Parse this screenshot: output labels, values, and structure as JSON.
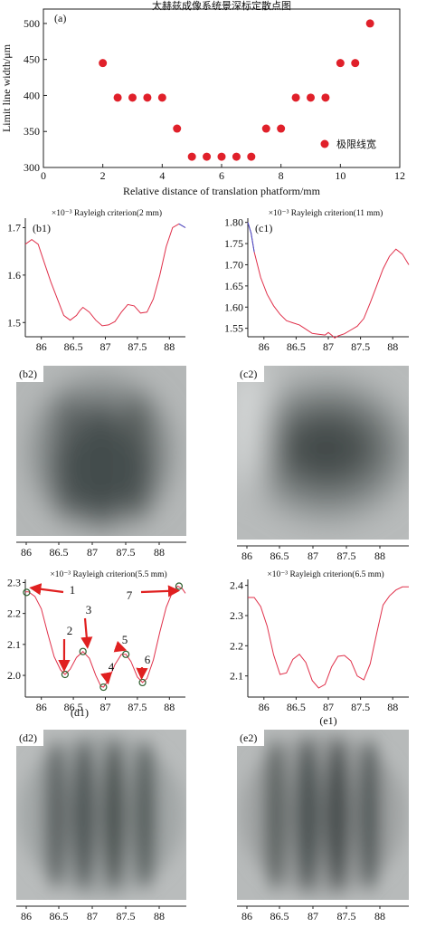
{
  "chart_data": [
    {
      "panel": "(a)",
      "type": "scatter",
      "title": "太赫兹成像系统景深标定散点图",
      "xlabel": "Relative distance of translation phatform/mm",
      "ylabel": "Limit line width/μm",
      "xlim": [
        0,
        12
      ],
      "ylim": [
        300,
        520
      ],
      "xticks": [
        "0",
        "2",
        "4",
        "6",
        "8",
        "10",
        "12"
      ],
      "yticks": [
        "300",
        "350",
        "400",
        "450",
        "500"
      ],
      "legend": "极限线宽",
      "legend_position": "bottom-right",
      "color": "#e0202a",
      "x": [
        2,
        2.5,
        3,
        3.5,
        4,
        4.5,
        5,
        5.5,
        6,
        6.5,
        7,
        7.5,
        8,
        8.5,
        9,
        9.5,
        10,
        10.5,
        11
      ],
      "y": [
        445,
        397,
        397,
        397,
        397,
        354,
        315,
        315,
        315,
        315,
        315,
        354,
        354,
        397,
        397,
        397,
        445,
        445,
        500
      ]
    },
    {
      "panel": "(b1)",
      "type": "line",
      "title": "×10⁻³ Rayleigh criterion(2 mm)",
      "xlim": [
        85.75,
        88.25
      ],
      "ylim": [
        1.47,
        1.72
      ],
      "xticks": [
        "86",
        "86.5",
        "87",
        "87.5",
        "88"
      ],
      "yticks": [
        "1.5",
        "1.6",
        "1.7"
      ],
      "x": [
        85.75,
        85.85,
        85.95,
        86.05,
        86.15,
        86.25,
        86.35,
        86.45,
        86.55,
        86.6,
        86.65,
        86.75,
        86.85,
        86.95,
        87.05,
        87.15,
        87.25,
        87.35,
        87.45,
        87.55,
        87.65,
        87.75,
        87.85,
        87.95,
        88.05,
        88.15,
        88.25
      ],
      "y": [
        1.665,
        1.675,
        1.665,
        1.625,
        1.585,
        1.55,
        1.515,
        1.505,
        1.515,
        1.525,
        1.532,
        1.522,
        1.505,
        1.493,
        1.495,
        1.502,
        1.522,
        1.538,
        1.535,
        1.52,
        1.522,
        1.55,
        1.6,
        1.66,
        1.7,
        1.708,
        1.7
      ]
    },
    {
      "panel": "(c1)",
      "type": "line",
      "title": "×10⁻³ Rayleigh criterion(11 mm)",
      "xlim": [
        85.75,
        88.25
      ],
      "ylim": [
        1.53,
        1.81
      ],
      "xticks": [
        "86",
        "86.5",
        "87",
        "87.5",
        "88"
      ],
      "yticks": [
        "1.55",
        "1.60",
        "1.65",
        "1.70",
        "1.75",
        "1.80"
      ],
      "x": [
        85.75,
        85.8,
        85.85,
        85.95,
        86.05,
        86.15,
        86.25,
        86.35,
        86.45,
        86.55,
        86.65,
        86.75,
        86.85,
        86.95,
        87.0,
        87.05,
        87.1,
        87.15,
        87.25,
        87.35,
        87.45,
        87.55,
        87.65,
        87.75,
        87.85,
        87.95,
        88.05,
        88.15,
        88.25
      ],
      "y": [
        1.8,
        1.775,
        1.73,
        1.67,
        1.63,
        1.603,
        1.583,
        1.568,
        1.563,
        1.558,
        1.548,
        1.538,
        1.536,
        1.534,
        1.54,
        1.534,
        1.527,
        1.532,
        1.537,
        1.546,
        1.555,
        1.573,
        1.61,
        1.65,
        1.69,
        1.72,
        1.737,
        1.725,
        1.7
      ]
    },
    {
      "panel": "(d1)",
      "type": "line",
      "title": "×10⁻³ Rayleigh criterion(5.5 mm)",
      "xlabel": "(d1)",
      "xlim": [
        85.75,
        88.25
      ],
      "ylim": [
        1.93,
        2.31
      ],
      "xticks": [
        "86",
        "86.5",
        "87",
        "87.5",
        "88"
      ],
      "yticks": [
        "2.0",
        "2.1",
        "2.2",
        "2.3"
      ],
      "x": [
        85.75,
        85.8,
        85.9,
        86.0,
        86.1,
        86.2,
        86.3,
        86.37,
        86.45,
        86.55,
        86.65,
        86.75,
        86.85,
        86.93,
        86.97,
        87.05,
        87.15,
        87.25,
        87.32,
        87.4,
        87.5,
        87.58,
        87.65,
        87.75,
        87.85,
        87.95,
        88.05,
        88.13,
        88.2,
        88.25
      ],
      "y": [
        2.27,
        2.27,
        2.255,
        2.215,
        2.135,
        2.06,
        2.018,
        2.003,
        2.02,
        2.058,
        2.077,
        2.055,
        2.0,
        1.965,
        1.962,
        1.985,
        2.035,
        2.068,
        2.068,
        2.045,
        1.995,
        1.977,
        1.99,
        2.05,
        2.14,
        2.22,
        2.27,
        2.288,
        2.28,
        2.265
      ],
      "markers": [
        {
          "label": "1",
          "x": 85.77,
          "y": 2.268
        },
        {
          "label": "2",
          "x": 86.37,
          "y": 2.003
        },
        {
          "label": "3",
          "x": 86.65,
          "y": 2.077
        },
        {
          "label": "4",
          "x": 86.97,
          "y": 1.962
        },
        {
          "label": "5",
          "x": 87.32,
          "y": 2.068
        },
        {
          "label": "6",
          "x": 87.58,
          "y": 1.977
        },
        {
          "label": "7",
          "x": 88.15,
          "y": 2.288
        }
      ]
    },
    {
      "panel": "(e1)",
      "type": "line",
      "title": "×10⁻³ Rayleigh criterion(6.5 mm)",
      "xlabel": "(e1)",
      "xlim": [
        85.75,
        88.25
      ],
      "ylim": [
        2.03,
        2.42
      ],
      "xticks": [
        "86",
        "86.5",
        "87",
        "87.5",
        "88"
      ],
      "yticks": [
        "2.1",
        "2.2",
        "2.3",
        "2.4"
      ],
      "x": [
        85.75,
        85.85,
        85.95,
        86.05,
        86.15,
        86.25,
        86.35,
        86.45,
        86.55,
        86.65,
        86.75,
        86.85,
        86.95,
        87.05,
        87.15,
        87.25,
        87.35,
        87.45,
        87.55,
        87.65,
        87.75,
        87.85,
        87.95,
        88.05,
        88.15,
        88.25
      ],
      "y": [
        2.36,
        2.36,
        2.33,
        2.265,
        2.17,
        2.105,
        2.11,
        2.155,
        2.172,
        2.145,
        2.085,
        2.06,
        2.072,
        2.13,
        2.165,
        2.168,
        2.15,
        2.1,
        2.087,
        2.14,
        2.24,
        2.335,
        2.365,
        2.385,
        2.395,
        2.395
      ]
    }
  ],
  "images": [
    {
      "panel": "(b2)",
      "xticks": [
        "86",
        "86.5",
        "87",
        "87.5",
        "88"
      ]
    },
    {
      "panel": "(c2)",
      "xticks": [
        "86",
        "86.5",
        "87",
        "87.5",
        "88"
      ]
    },
    {
      "panel": "(d2)",
      "xticks": [
        "86",
        "86.5",
        "87",
        "87.5",
        "88"
      ]
    },
    {
      "panel": "(e2)",
      "xticks": [
        "86",
        "86.5",
        "87",
        "87.5",
        "88"
      ]
    }
  ],
  "colors": {
    "line": "#e0304a",
    "line_end": "#3d4fd0",
    "marker_edge": "#2e5e2e",
    "arrow": "#e02020",
    "scatter": "#e0202a"
  }
}
